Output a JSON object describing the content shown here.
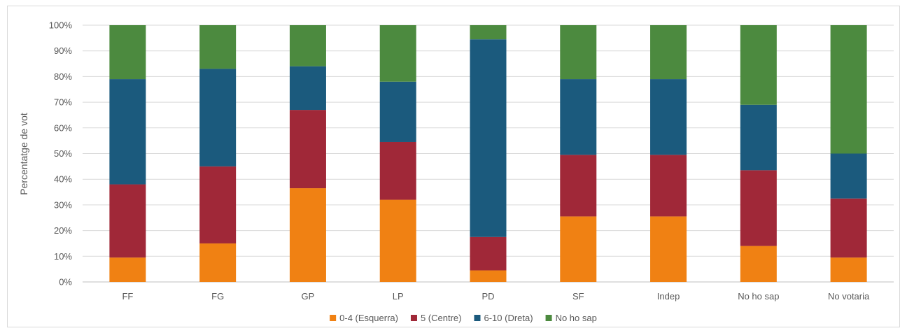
{
  "chart_data": {
    "type": "bar",
    "stacked": true,
    "percent": true,
    "title": "",
    "xlabel": "",
    "ylabel": "Percentatge de vot",
    "ylim": [
      0,
      100
    ],
    "yticks": [
      "0%",
      "10%",
      "20%",
      "30%",
      "40%",
      "50%",
      "60%",
      "70%",
      "80%",
      "90%",
      "100%"
    ],
    "grid": true,
    "legend_position": "bottom",
    "categories": [
      "FF",
      "FG",
      "GP",
      "LP",
      "PD",
      "SF",
      "Indep",
      "No ho sap",
      "No votaria"
    ],
    "series": [
      {
        "name": "0-4 (Esquerra)",
        "color": "#f08113",
        "values": [
          9.5,
          15,
          36.5,
          32,
          4.5,
          25.5,
          25.5,
          14,
          9.5
        ]
      },
      {
        "name": "5 (Centre)",
        "color": "#a02838",
        "values": [
          28.5,
          30,
          30.5,
          22.5,
          13,
          24,
          24,
          29.5,
          23
        ]
      },
      {
        "name": "6-10 (Dreta)",
        "color": "#1b5a7d",
        "values": [
          41,
          38,
          17,
          23.5,
          77,
          29.5,
          29.5,
          25.5,
          17.5
        ]
      },
      {
        "name": "No ho sap",
        "color": "#4c8a3f",
        "values": [
          21,
          17,
          16,
          22,
          5.5,
          21,
          21,
          31,
          50
        ]
      }
    ]
  }
}
